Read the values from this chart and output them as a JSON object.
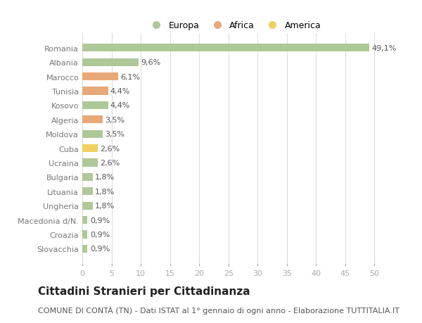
{
  "categories": [
    "Romania",
    "Albania",
    "Marocco",
    "Tunisia",
    "Kosovo",
    "Algeria",
    "Moldova",
    "Cuba",
    "Ucraina",
    "Bulgaria",
    "Lituania",
    "Ungheria",
    "Macedonia d/N.",
    "Croazia",
    "Slovacchia"
  ],
  "values": [
    49.1,
    9.6,
    6.1,
    4.4,
    4.4,
    3.5,
    3.5,
    2.6,
    2.6,
    1.8,
    1.8,
    1.8,
    0.9,
    0.9,
    0.9
  ],
  "labels": [
    "49,1%",
    "9,6%",
    "6,1%",
    "4,4%",
    "4,4%",
    "3,5%",
    "3,5%",
    "2,6%",
    "2,6%",
    "1,8%",
    "1,8%",
    "1,8%",
    "0,9%",
    "0,9%",
    "0,9%"
  ],
  "continents": [
    "Europa",
    "Europa",
    "Africa",
    "Africa",
    "Europa",
    "Africa",
    "Europa",
    "America",
    "Europa",
    "Europa",
    "Europa",
    "Europa",
    "Europa",
    "Europa",
    "Europa"
  ],
  "colors": {
    "Europa": "#aec898",
    "Africa": "#e8a878",
    "America": "#f0d060"
  },
  "title": "Cittadini Stranieri per Cittadinanza",
  "subtitle": "COMUNE DI CONTÀ (TN) - Dati ISTAT al 1° gennaio di ogni anno - Elaborazione TUTTITALIA.IT",
  "xlim": [
    0,
    52
  ],
  "xticks": [
    0,
    5,
    10,
    15,
    20,
    25,
    30,
    35,
    40,
    45,
    50
  ],
  "background_color": "#ffffff",
  "grid_color": "#dddddd",
  "bar_height": 0.55,
  "title_fontsize": 11,
  "subtitle_fontsize": 8,
  "label_fontsize": 8,
  "tick_fontsize": 8,
  "legend_fontsize": 9
}
